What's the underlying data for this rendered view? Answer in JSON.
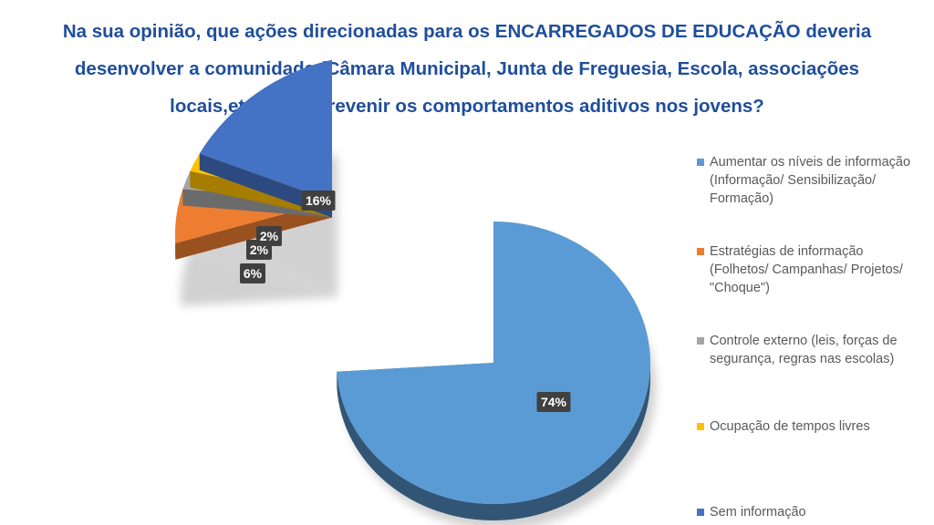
{
  "chart_data": {
    "type": "pie",
    "title": "Na sua opinião, que ações direcionadas para os ENCARREGADOS DE EDUCAÇÃO deveria desenvolver a comunidade (Câmara Municipal, Junta de Freguesia, Escola, associações locais,etc.) para prevenir os comportamentos aditivos nos jovens?",
    "exploded": true,
    "three_d": true,
    "legend_position": "right",
    "series": [
      {
        "slices": [
          {
            "label": "Aumentar os níveis de informação (Informação/ Sensibilização/ Formação)",
            "value": 74,
            "value_label": "74%",
            "color": "#5b9bd5"
          },
          {
            "label": "Estratégias de informação (Folhetos/ Campanhas/ Projetos/ \"Choque\")",
            "value": 6,
            "value_label": "6%",
            "color": "#ed7d31"
          },
          {
            "label": "Controle externo (leis, forças de segurança, regras nas escolas)",
            "value": 2,
            "value_label": "2%",
            "color": "#a5a5a5"
          },
          {
            "label": "Ocupação de tempos livres",
            "value": 2,
            "value_label": "2%",
            "color": "#ffc000"
          },
          {
            "label": "Sem informação",
            "value": 16,
            "value_label": "16%",
            "color": "#4472c4"
          }
        ]
      }
    ]
  }
}
